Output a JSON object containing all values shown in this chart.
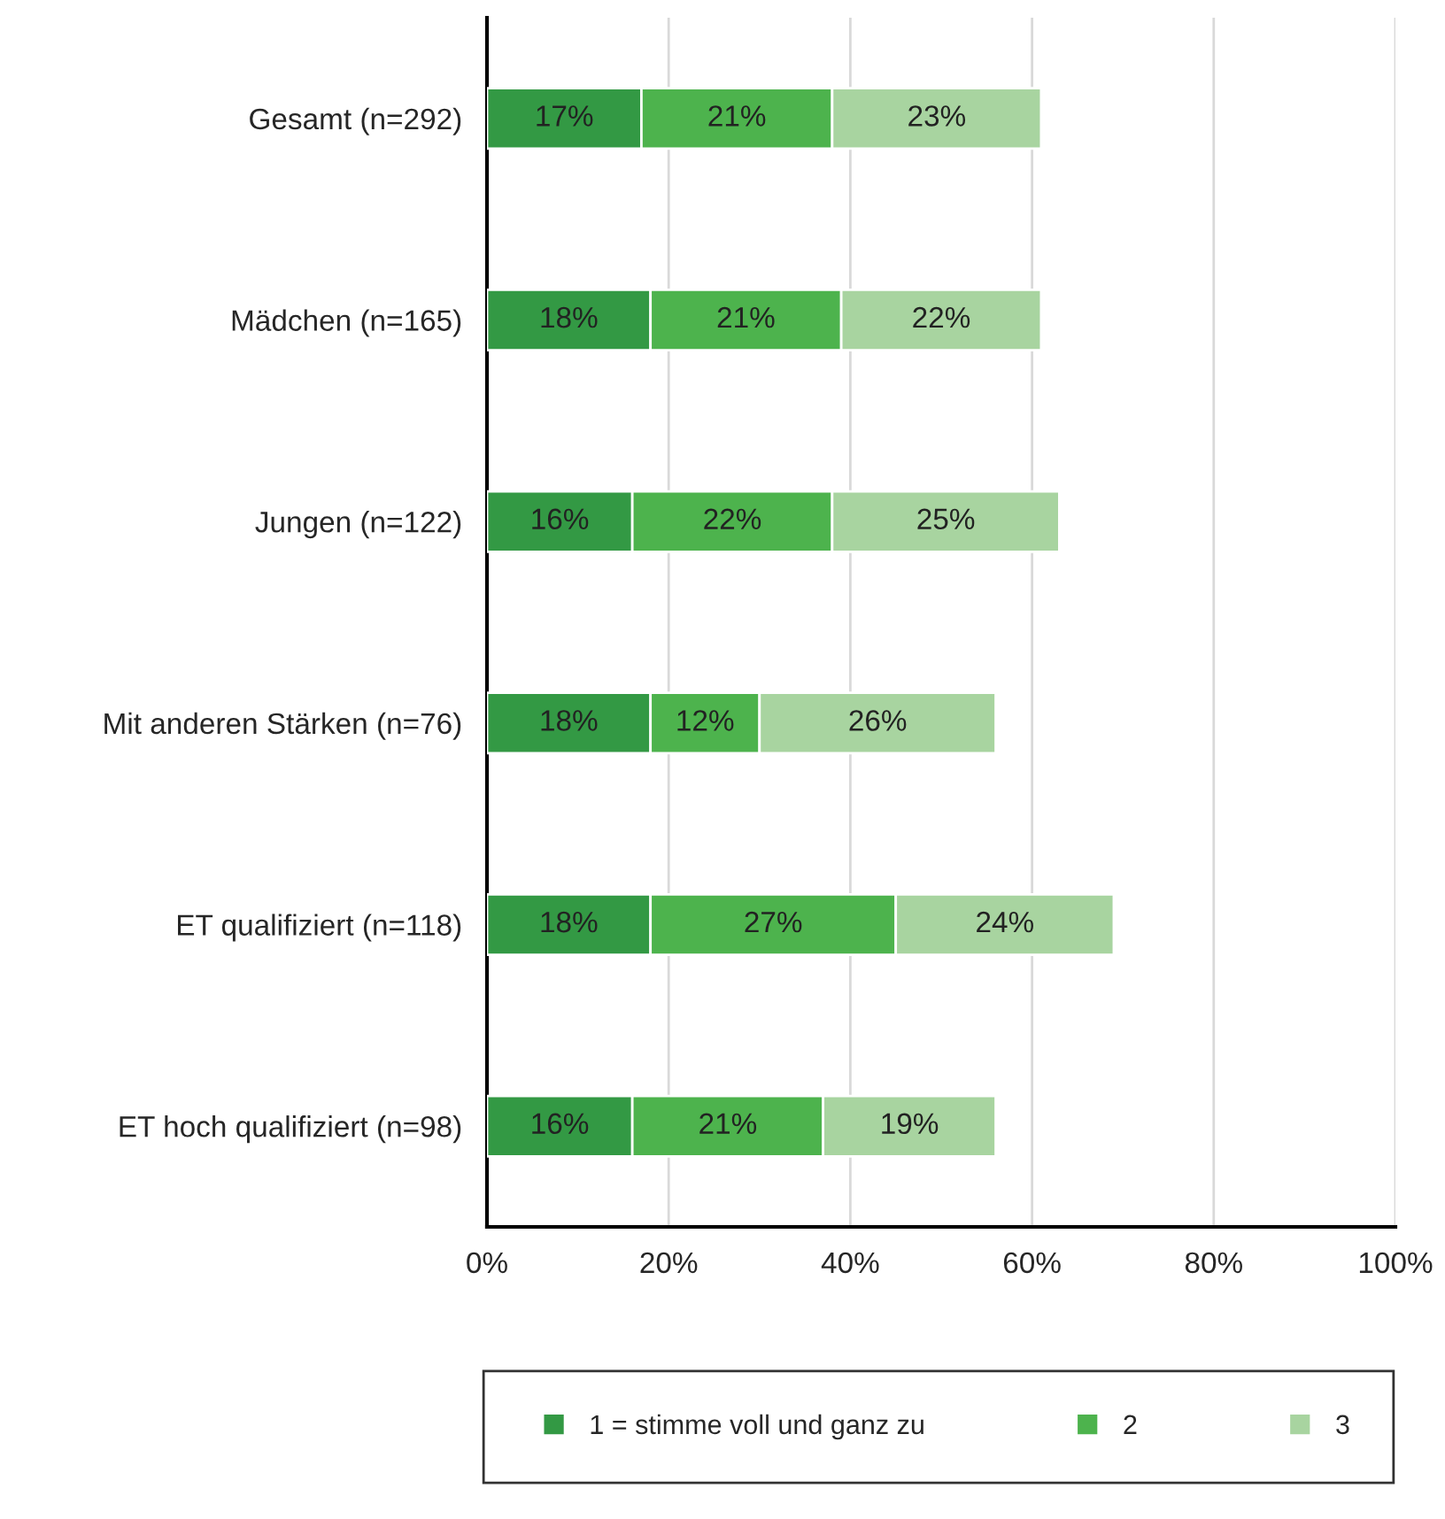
{
  "chart_data": {
    "type": "bar",
    "orientation": "horizontal",
    "stacked": true,
    "categories": [
      "Gesamt (n=292)",
      "Mädchen (n=165)",
      "Jungen (n=122)",
      "Mit anderen Stärken (n=76)",
      "ET qualifiziert (n=118)",
      "ET hoch qualifiziert (n=98)"
    ],
    "series": [
      {
        "name": "1 = stimme voll und ganz zu",
        "color": "#339944",
        "values": [
          17,
          18,
          16,
          18,
          18,
          16
        ],
        "value_labels": [
          "17%",
          "18%",
          "16%",
          "18%",
          "18%",
          "16%"
        ]
      },
      {
        "name": "2",
        "color": "#4db34d",
        "values": [
          21,
          21,
          22,
          12,
          27,
          21
        ],
        "value_labels": [
          "21%",
          "21%",
          "22%",
          "12%",
          "27%",
          "21%"
        ]
      },
      {
        "name": "3",
        "color": "#a8d4a0",
        "values": [
          23,
          22,
          25,
          26,
          24,
          19
        ],
        "value_labels": [
          "23%",
          "22%",
          "25%",
          "26%",
          "24%",
          "19%"
        ]
      }
    ],
    "xlim": [
      0,
      100
    ],
    "xticks": [
      {
        "value": 0,
        "label": "0%"
      },
      {
        "value": 20,
        "label": "20%"
      },
      {
        "value": 40,
        "label": "40%"
      },
      {
        "value": 60,
        "label": "60%"
      },
      {
        "value": 80,
        "label": "80%"
      },
      {
        "value": 100,
        "label": "100%"
      }
    ],
    "grid": "x",
    "legend": "bottom"
  }
}
